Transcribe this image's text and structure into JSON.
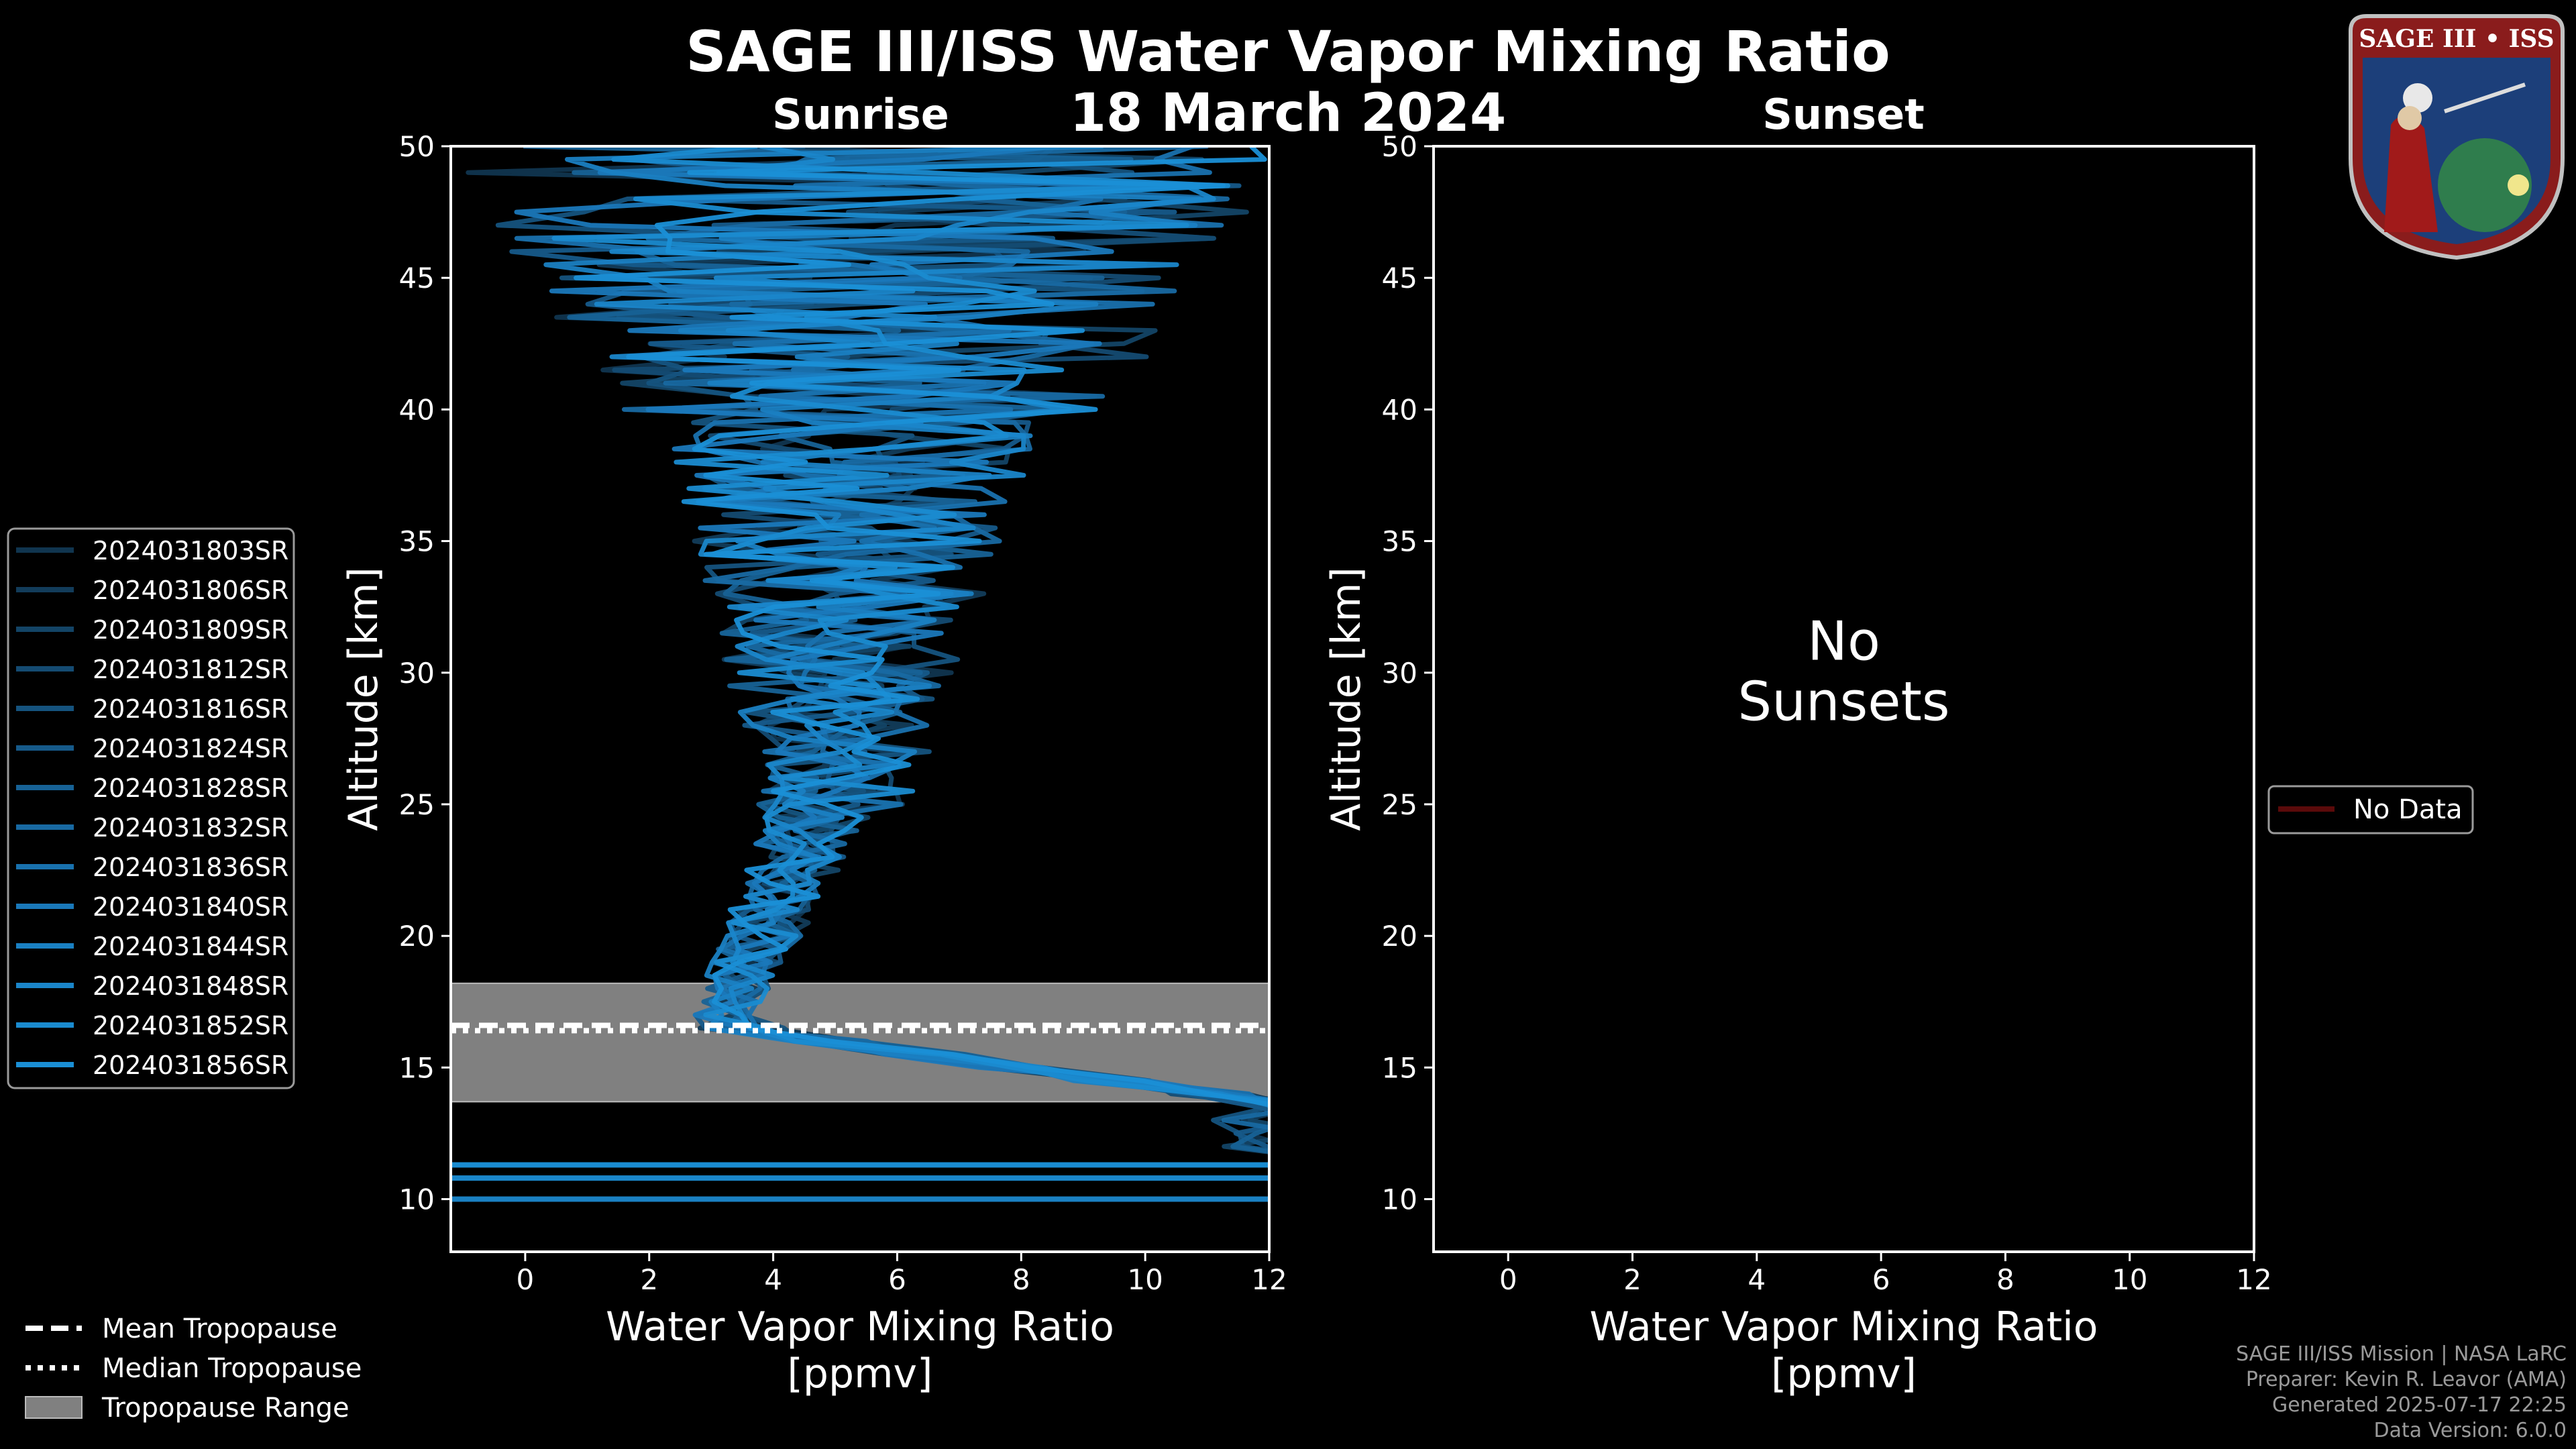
{
  "figure": {
    "title": "SAGE III/ISS Water Vapor Mixing Ratio",
    "date": "18 March 2024",
    "logo_text": "SAGE III • ISS",
    "credits": [
      "SAGE III/ISS Mission | NASA LaRC",
      "Preparer: Kevin R. Leavor (AMA)",
      "Generated 2025-07-17 22:25",
      "Data Version: 6.0.0"
    ]
  },
  "colors": {
    "background": "#000000",
    "profile_light": "#1a8fd6",
    "profile_dark": "#0d3a5c",
    "tropopause_range": "#808080",
    "no_data": "#5a0a0a"
  },
  "chart_data": [
    {
      "type": "line",
      "panel": "Sunrise",
      "xlabel": "Water Vapor Mixing Ratio\n[ppmv]",
      "ylabel": "Altitude [km]",
      "xlim": [
        -1.2,
        12
      ],
      "ylim": [
        8,
        50
      ],
      "xticks": [
        0,
        2,
        4,
        6,
        8,
        10,
        12
      ],
      "yticks": [
        10,
        15,
        20,
        25,
        30,
        35,
        40,
        45,
        50
      ],
      "legend_placement": "left-outside",
      "series": [
        {
          "name": "2024031803SR",
          "color": "#10354f"
        },
        {
          "name": "2024031806SR",
          "color": "#123c5a"
        },
        {
          "name": "2024031809SR",
          "color": "#134466"
        },
        {
          "name": "2024031812SR",
          "color": "#144b72"
        },
        {
          "name": "2024031816SR",
          "color": "#15537e"
        },
        {
          "name": "2024031824SR",
          "color": "#165a8a"
        },
        {
          "name": "2024031828SR",
          "color": "#176296"
        },
        {
          "name": "2024031832SR",
          "color": "#1869a2"
        },
        {
          "name": "2024031836SR",
          "color": "#1971ae"
        },
        {
          "name": "2024031840SR",
          "color": "#1a78ba"
        },
        {
          "name": "2024031844SR",
          "color": "#1a80c2"
        },
        {
          "name": "2024031848SR",
          "color": "#1a86ca"
        },
        {
          "name": "2024031852SR",
          "color": "#1a8bd0"
        },
        {
          "name": "2024031856SR",
          "color": "#1a8fd6"
        }
      ],
      "tropopause": {
        "mean_km": 16.6,
        "median_km": 16.4,
        "range_km": [
          13.7,
          18.2
        ],
        "legend": [
          "Mean Tropopause",
          "Median Tropopause",
          "Tropopause Range"
        ]
      }
    },
    {
      "type": "line",
      "panel": "Sunset",
      "xlabel": "Water Vapor Mixing Ratio\n[ppmv]",
      "ylabel": "Altitude [km]",
      "xlim": [
        -1.2,
        12
      ],
      "ylim": [
        8,
        50
      ],
      "xticks": [
        0,
        2,
        4,
        6,
        8,
        10,
        12
      ],
      "yticks": [
        10,
        15,
        20,
        25,
        30,
        35,
        40,
        45,
        50
      ],
      "message": "No\nSunsets",
      "legend_placement": "right-outside",
      "series": [
        {
          "name": "No Data",
          "color": "#5a0a0a"
        }
      ]
    }
  ]
}
